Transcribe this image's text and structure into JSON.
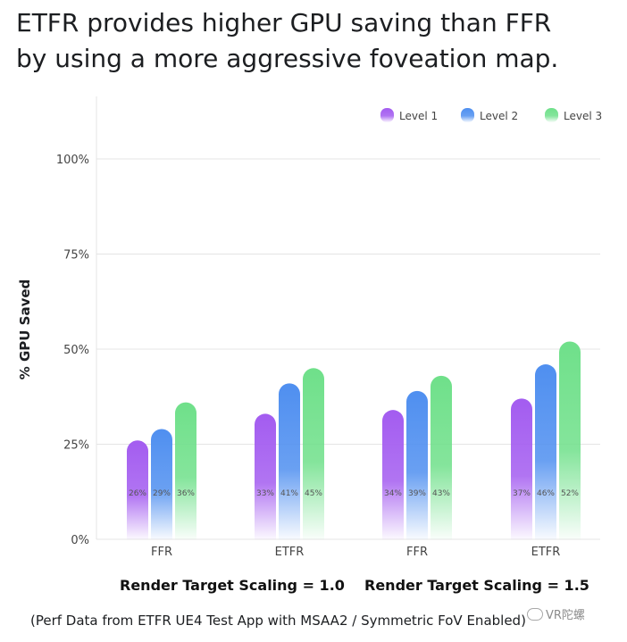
{
  "title": {
    "line1": "ETFR provides higher GPU saving than FFR",
    "line2": "by using a more aggressive foveation map."
  },
  "colors": {
    "level1": "#a35cf0",
    "level2": "#4f8ff0",
    "level3": "#6fe08a",
    "grid": "#e4e4e4",
    "axis_text": "#444444"
  },
  "chart_data": {
    "type": "bar",
    "title": "ETFR provides higher GPU saving than FFR by using a more aggressive foveation map.",
    "ylabel": "% GPU Saved",
    "ylim": [
      0,
      100
    ],
    "yticks": [
      "0%",
      "25%",
      "50%",
      "75%",
      "100%"
    ],
    "ytick_values": [
      0,
      25,
      50,
      75,
      100
    ],
    "categories": [
      "FFR",
      "ETFR",
      "FFR",
      "ETFR"
    ],
    "group_labels": [
      "Render Target Scaling = 1.0",
      "Render Target Scaling = 1.5"
    ],
    "legend_position": "top-right",
    "grid": true,
    "series": [
      {
        "name": "Level 1",
        "values": [
          26,
          33,
          34,
          37
        ],
        "labels": [
          "26%",
          "33%",
          "34%",
          "37%"
        ]
      },
      {
        "name": "Level 2",
        "values": [
          29,
          41,
          39,
          46
        ],
        "labels": [
          "29%",
          "41%",
          "39%",
          "46%"
        ]
      },
      {
        "name": "Level 3",
        "values": [
          36,
          45,
          43,
          52
        ],
        "labels": [
          "36%",
          "45%",
          "43%",
          "52%"
        ]
      }
    ]
  },
  "group_labels": {
    "left": "Render Target Scaling = 1.0",
    "right": "Render Target Scaling = 1.5"
  },
  "footnote": "(Perf Data from ETFR UE4 Test App with MSAA2 / Symmetric FoV Enabled)",
  "watermark": "VR陀螺"
}
